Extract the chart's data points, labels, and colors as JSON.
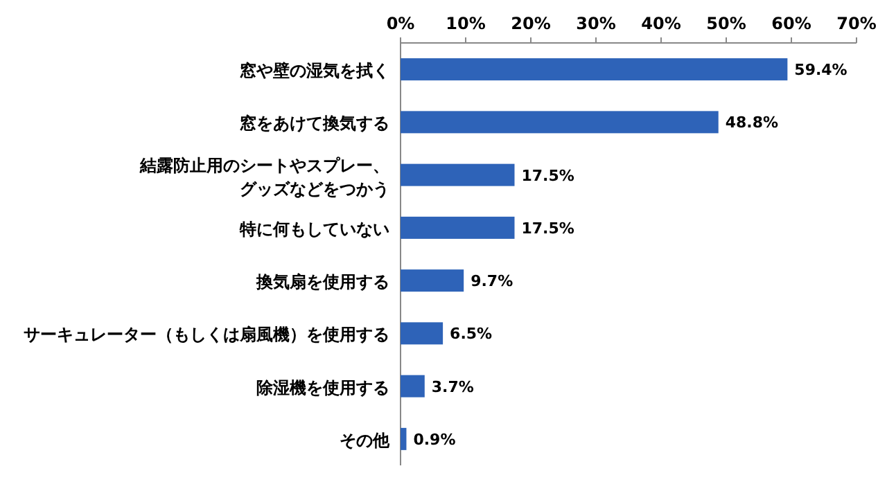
{
  "chart_data": {
    "type": "bar",
    "orientation": "horizontal",
    "categories": [
      "窓や壁の湿気を拭く",
      "窓をあけて換気する",
      "結露防止用のシートやスプレー、グッズなどをつかう",
      "特に何もしていない",
      "換気扇を使用する",
      "サーキュレーター（もしくは扇風機）を使用する",
      "除湿機を使用する",
      "その他"
    ],
    "values": [
      59.4,
      48.8,
      17.5,
      17.5,
      9.7,
      6.5,
      3.7,
      0.9
    ],
    "value_labels": [
      "59.4%",
      "48.8%",
      "17.5%",
      "17.5%",
      "9.7%",
      "6.5%",
      "3.7%",
      "0.9%"
    ],
    "color": "#2e63b8",
    "xlim": [
      0,
      70
    ],
    "xticks": [
      {
        "value": 0,
        "label": "0%"
      },
      {
        "value": 10,
        "label": "10%"
      },
      {
        "value": 20,
        "label": "20%"
      },
      {
        "value": 30,
        "label": "30%"
      },
      {
        "value": 40,
        "label": "40%"
      },
      {
        "value": 50,
        "label": "50%"
      },
      {
        "value": 60,
        "label": "60%"
      },
      {
        "value": 70,
        "label": "70%"
      }
    ]
  }
}
